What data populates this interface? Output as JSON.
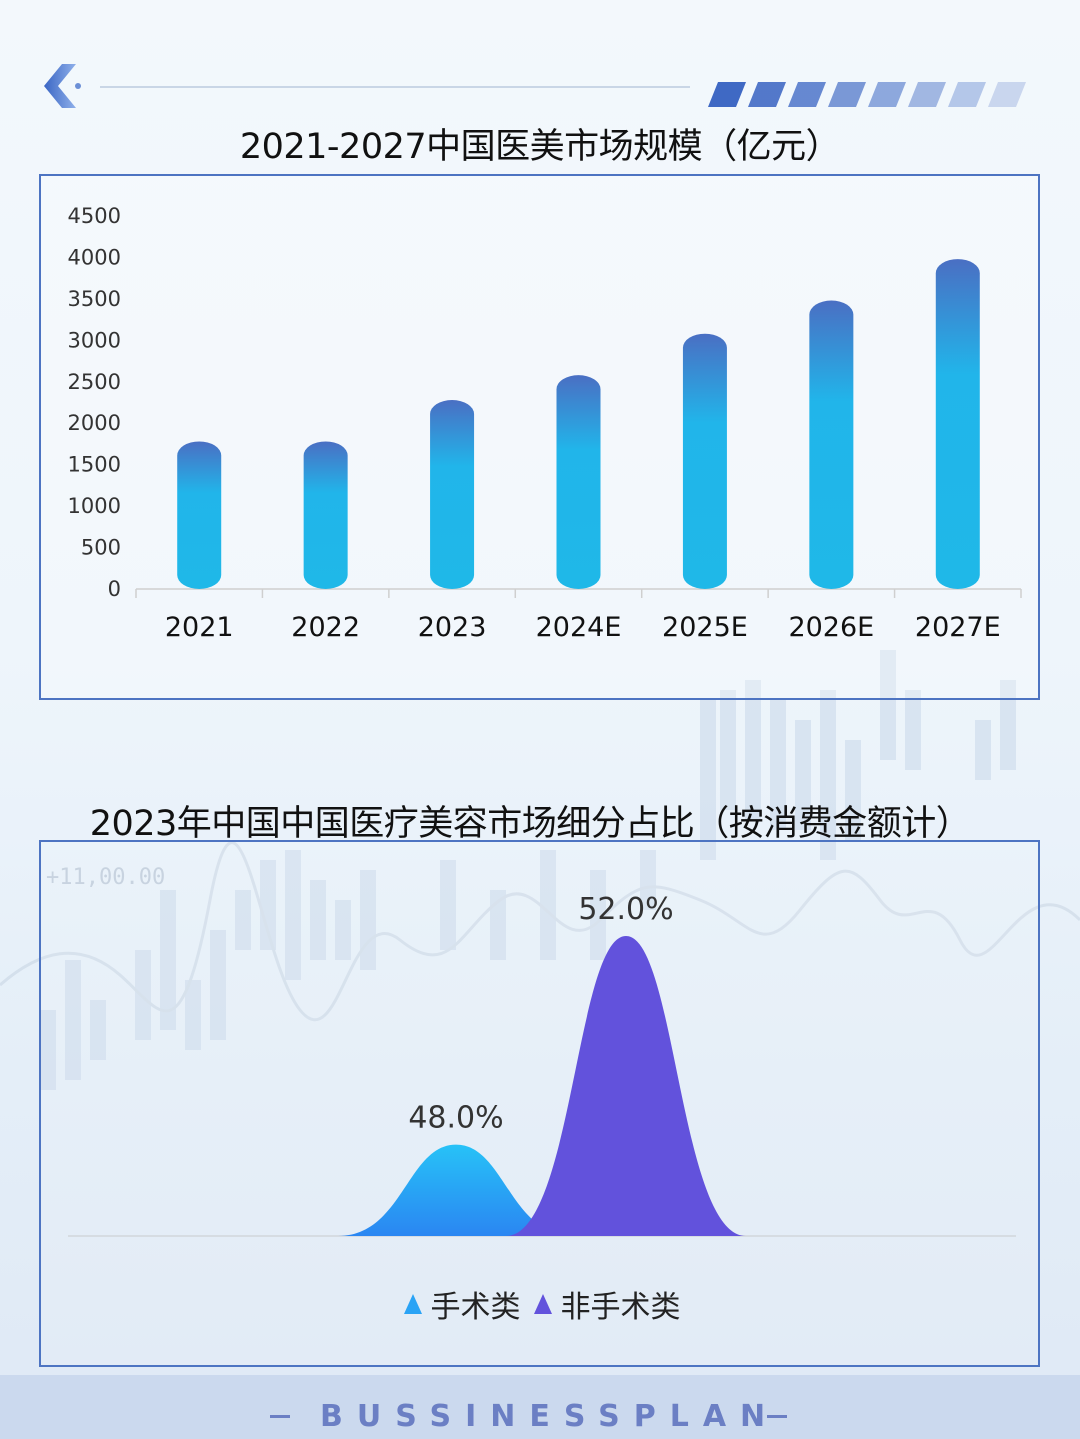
{
  "footer": {
    "text": "BUSSINESSPLAN"
  },
  "decor": {
    "ticker_text": "+11,00.00"
  },
  "colors": {
    "bar_top": "#4a6fc3",
    "bar_bottom": "#1fb8e8",
    "series_surgical": "#2aa3f5",
    "series_nonsurgical": "#6252dc",
    "panel_border": "#4d74c2"
  },
  "chart_data": [
    {
      "type": "bar",
      "title": "2021-2027中国医美市场规模（亿元）",
      "categories": [
        "2021",
        "2022",
        "2023",
        "2024E",
        "2025E",
        "2026E",
        "2027E"
      ],
      "values": [
        1780,
        1780,
        2280,
        2580,
        3080,
        3480,
        3980
      ],
      "yticks": [
        "0",
        "500",
        "1000",
        "1500",
        "2000",
        "2500",
        "3000",
        "3500",
        "4000",
        "4500"
      ],
      "ylim": [
        0,
        4500
      ],
      "grid": false,
      "legend": "none"
    },
    {
      "type": "area",
      "title": "2023年中国中国医疗美容市场细分占比（按消费金额计）",
      "series": [
        {
          "name": "手术类",
          "value": 48.0,
          "label": "48.0%"
        },
        {
          "name": "非手术类",
          "value": 52.0,
          "label": "52.0%"
        }
      ],
      "legend": "bottom-center"
    }
  ]
}
